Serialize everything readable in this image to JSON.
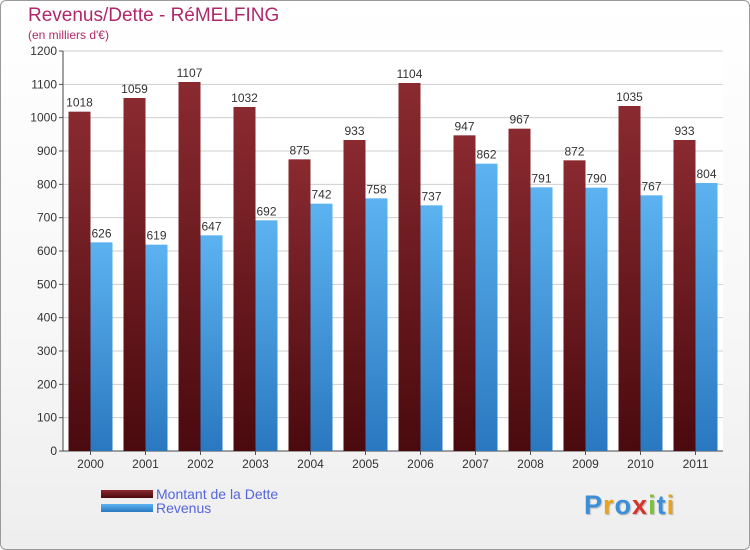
{
  "chart_data": {
    "type": "bar",
    "title": "Revenus/Dette - RéMELFING",
    "subtitle": "(en milliers d'€)",
    "categories": [
      "2000",
      "2001",
      "2002",
      "2003",
      "2004",
      "2005",
      "2006",
      "2007",
      "2008",
      "2009",
      "2010",
      "2011"
    ],
    "series": [
      {
        "name": "Montant de la Dette",
        "color": "#7a1f26",
        "values": [
          1018,
          1059,
          1107,
          1032,
          875,
          933,
          1104,
          947,
          967,
          872,
          1035,
          933
        ]
      },
      {
        "name": "Revenus",
        "color": "#4aa3e6",
        "values": [
          626,
          619,
          647,
          692,
          742,
          758,
          737,
          862,
          791,
          790,
          767,
          804
        ]
      }
    ],
    "ylim": [
      0,
      1200
    ],
    "yticks": [
      0,
      100,
      200,
      300,
      400,
      500,
      600,
      700,
      800,
      900,
      1000,
      1100,
      1200
    ],
    "grid": true,
    "legend": "bottom-left",
    "logo": "Proxiti"
  }
}
